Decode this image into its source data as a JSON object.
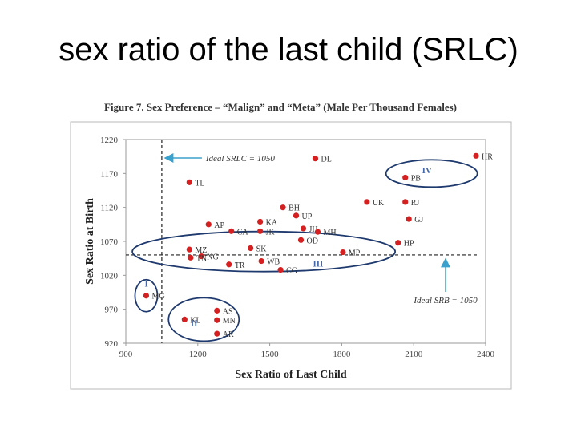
{
  "slide": {
    "title": "sex ratio of the last child (SRLC)",
    "figure_caption": "Figure 7. Sex Preference – “Malign” and “Meta” (Male Per Thousand Females)"
  },
  "colors": {
    "point": "#d42020",
    "cluster_ring": "#1f3a6e",
    "arrow": "#3aa0cc",
    "reference_line": "#222222",
    "cluster_label": "#4466aa"
  },
  "chart_data": {
    "type": "scatter",
    "title": "",
    "xlabel": "Sex Ratio of Last Child",
    "ylabel": "Sex Ratio at Birth",
    "xlim": [
      900,
      2400
    ],
    "ylim": [
      920,
      1220
    ],
    "xticks": [
      900,
      1200,
      1500,
      1800,
      2100,
      2400
    ],
    "yticks": [
      920,
      970,
      1020,
      1070,
      1120,
      1170,
      1220
    ],
    "grid": false,
    "reference_lines": [
      {
        "axis": "x",
        "value": 1050,
        "label": "Ideal SRLC = 1050"
      },
      {
        "axis": "y",
        "value": 1050,
        "label": "Ideal SRB = 1050"
      }
    ],
    "points": [
      {
        "label": "HR",
        "x": 2360,
        "y": 1196
      },
      {
        "label": "DL",
        "x": 1690,
        "y": 1192
      },
      {
        "label": "PB",
        "x": 2065,
        "y": 1164
      },
      {
        "label": "TL",
        "x": 1165,
        "y": 1157
      },
      {
        "label": "UK",
        "x": 1905,
        "y": 1128
      },
      {
        "label": "RJ",
        "x": 2065,
        "y": 1128
      },
      {
        "label": "BH",
        "x": 1555,
        "y": 1120
      },
      {
        "label": "UP",
        "x": 1610,
        "y": 1108
      },
      {
        "label": "GJ",
        "x": 2080,
        "y": 1103
      },
      {
        "label": "KA",
        "x": 1460,
        "y": 1099
      },
      {
        "label": "AP",
        "x": 1245,
        "y": 1095
      },
      {
        "label": "JH",
        "x": 1640,
        "y": 1089
      },
      {
        "label": "CA",
        "x": 1340,
        "y": 1085
      },
      {
        "label": "JK",
        "x": 1460,
        "y": 1085
      },
      {
        "label": "MH",
        "x": 1700,
        "y": 1084
      },
      {
        "label": "OD",
        "x": 1630,
        "y": 1072
      },
      {
        "label": "HP",
        "x": 2035,
        "y": 1068
      },
      {
        "label": "SK",
        "x": 1420,
        "y": 1060
      },
      {
        "label": "MZ",
        "x": 1165,
        "y": 1058
      },
      {
        "label": "MP",
        "x": 1805,
        "y": 1054
      },
      {
        "label": "NG",
        "x": 1215,
        "y": 1048
      },
      {
        "label": "TN",
        "x": 1170,
        "y": 1046
      },
      {
        "label": "WB",
        "x": 1465,
        "y": 1041
      },
      {
        "label": "TR",
        "x": 1330,
        "y": 1036
      },
      {
        "label": "CG",
        "x": 1545,
        "y": 1028
      },
      {
        "label": "MG",
        "x": 985,
        "y": 990
      },
      {
        "label": "AS",
        "x": 1280,
        "y": 968
      },
      {
        "label": "KL",
        "x": 1145,
        "y": 955
      },
      {
        "label": "MN",
        "x": 1280,
        "y": 954
      },
      {
        "label": "AR",
        "x": 1280,
        "y": 934
      }
    ],
    "clusters": [
      {
        "label": "I"
      },
      {
        "label": "II"
      },
      {
        "label": "III"
      },
      {
        "label": "IV"
      }
    ]
  }
}
